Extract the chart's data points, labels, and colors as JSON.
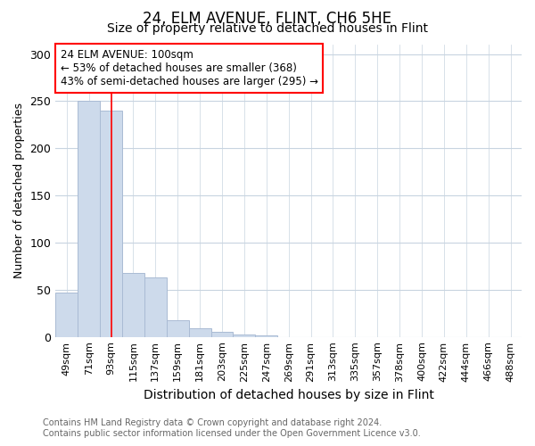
{
  "title": "24, ELM AVENUE, FLINT, CH6 5HE",
  "subtitle": "Size of property relative to detached houses in Flint",
  "xlabel": "Distribution of detached houses by size in Flint",
  "ylabel": "Number of detached properties",
  "footer1": "Contains HM Land Registry data © Crown copyright and database right 2024.",
  "footer2": "Contains public sector information licensed under the Open Government Licence v3.0.",
  "annotation_line1": "24 ELM AVENUE: 100sqm",
  "annotation_line2": "← 53% of detached houses are smaller (368)",
  "annotation_line3": "43% of semi-detached houses are larger (295) →",
  "bar_labels": [
    "49sqm",
    "71sqm",
    "93sqm",
    "115sqm",
    "137sqm",
    "159sqm",
    "181sqm",
    "203sqm",
    "225sqm",
    "247sqm",
    "269sqm",
    "291sqm",
    "313sqm",
    "335sqm",
    "357sqm",
    "378sqm",
    "400sqm",
    "422sqm",
    "444sqm",
    "466sqm",
    "488sqm"
  ],
  "bar_values": [
    47,
    250,
    240,
    68,
    63,
    18,
    9,
    5,
    3,
    2,
    0,
    0,
    0,
    0,
    0,
    0,
    0,
    0,
    0,
    0,
    0
  ],
  "bar_color": "#cddaeb",
  "bar_edgecolor": "#aabbd4",
  "redline_x": 2.0,
  "ylim": [
    0,
    310
  ],
  "yticks": [
    0,
    50,
    100,
    150,
    200,
    250,
    300
  ],
  "grid_color": "#c8d4e0",
  "title_fontsize": 12,
  "subtitle_fontsize": 10,
  "xlabel_fontsize": 10,
  "ylabel_fontsize": 9,
  "tick_fontsize": 8,
  "footer_fontsize": 7,
  "annotation_fontsize": 8.5,
  "background_color": "#ffffff"
}
